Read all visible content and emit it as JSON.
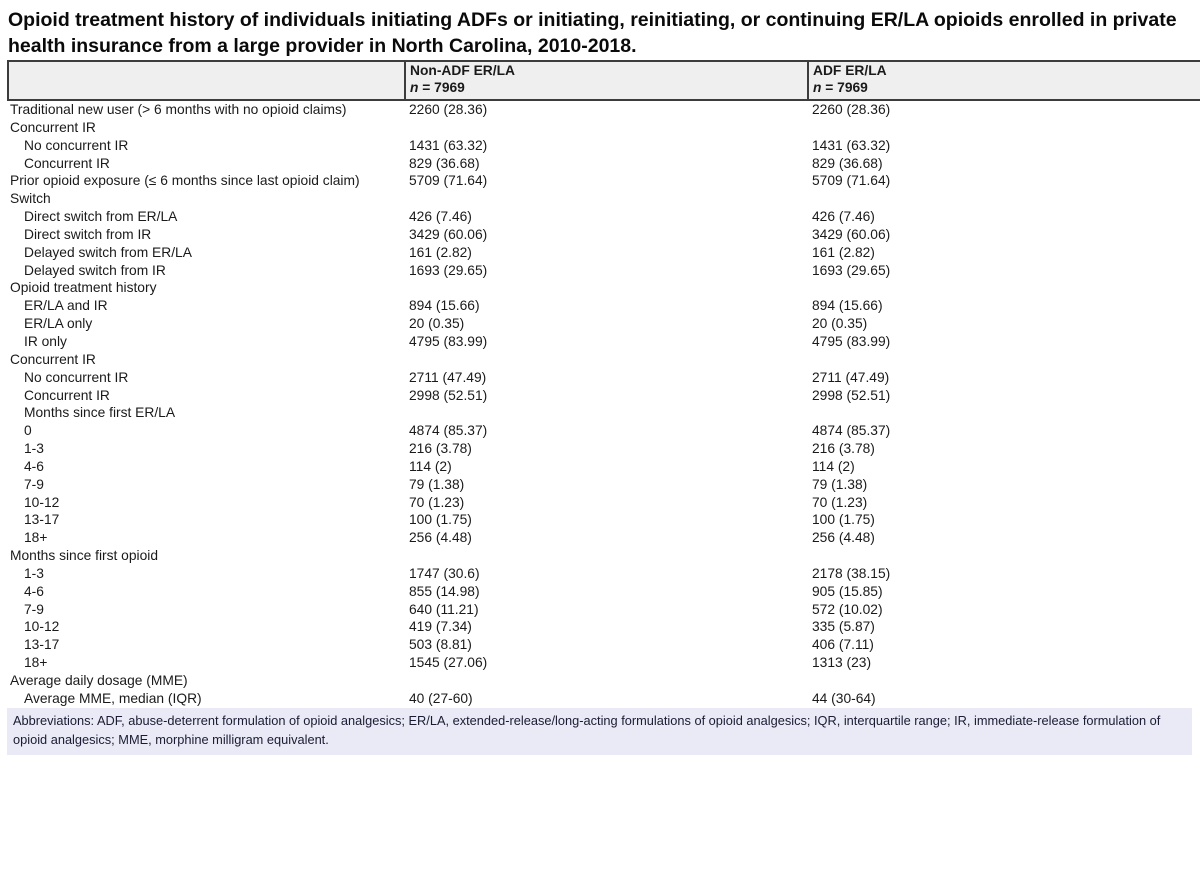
{
  "page": {
    "title": "Opioid treatment history of individuals initiating ADFs or initiating, reinitiating, or continuing ER/LA opioids enrolled in private health insurance from a large provider in North Carolina, 2010-2018."
  },
  "colors": {
    "header_bg": "#efeff0",
    "table_border": "#3c3c3c",
    "footnote_bg": "#e9eaf6",
    "text": "#1a1a1a"
  },
  "table": {
    "header": {
      "col1": "",
      "col2": {
        "label": "Non-ADF ER/LA",
        "n_symbol": "n",
        "n_value": " = 7969"
      },
      "col3": {
        "label": "ADF ER/LA",
        "n_symbol": "n",
        "n_value": " = 7969"
      }
    },
    "rows": [
      {
        "label": "Traditional new user (> 6 months with no opioid claims)",
        "indent": 0,
        "non_adf": "2260 (28.36)",
        "adf": "2260 (28.36)"
      },
      {
        "label": "Concurrent IR",
        "indent": 0,
        "non_adf": "",
        "adf": ""
      },
      {
        "label": "No concurrent IR",
        "indent": 1,
        "non_adf": "1431 (63.32)",
        "adf": "1431 (63.32)"
      },
      {
        "label": "Concurrent IR",
        "indent": 1,
        "non_adf": "829 (36.68)",
        "adf": "829 (36.68)"
      },
      {
        "label": "Prior opioid exposure (≤ 6 months since last opioid claim)",
        "indent": 0,
        "non_adf": "5709 (71.64)",
        "adf": "5709 (71.64)"
      },
      {
        "label": "Switch",
        "indent": 0,
        "non_adf": "",
        "adf": ""
      },
      {
        "label": "Direct switch from ER/LA",
        "indent": 1,
        "non_adf": "426 (7.46)",
        "adf": "426 (7.46)"
      },
      {
        "label": "Direct switch from IR",
        "indent": 1,
        "non_adf": "3429 (60.06)",
        "adf": "3429 (60.06)"
      },
      {
        "label": "Delayed switch from ER/LA",
        "indent": 1,
        "non_adf": "161 (2.82)",
        "adf": "161 (2.82)"
      },
      {
        "label": "Delayed switch from IR",
        "indent": 1,
        "non_adf": "1693 (29.65)",
        "adf": "1693 (29.65)"
      },
      {
        "label": "Opioid treatment history",
        "indent": 0,
        "non_adf": "",
        "adf": ""
      },
      {
        "label": "ER/LA and IR",
        "indent": 1,
        "non_adf": "894 (15.66)",
        "adf": "894 (15.66)"
      },
      {
        "label": "ER/LA only",
        "indent": 1,
        "non_adf": "20 (0.35)",
        "adf": "20 (0.35)"
      },
      {
        "label": "IR only",
        "indent": 1,
        "non_adf": "4795 (83.99)",
        "adf": "4795 (83.99)"
      },
      {
        "label": "Concurrent IR",
        "indent": 0,
        "non_adf": "",
        "adf": ""
      },
      {
        "label": "No concurrent IR",
        "indent": 1,
        "non_adf": "2711 (47.49)",
        "adf": "2711 (47.49)"
      },
      {
        "label": "Concurrent IR",
        "indent": 1,
        "non_adf": "2998 (52.51)",
        "adf": "2998 (52.51)"
      },
      {
        "label": "Months since first ER/LA",
        "indent": 1,
        "non_adf": "",
        "adf": ""
      },
      {
        "label": "0",
        "indent": 1,
        "non_adf": "4874 (85.37)",
        "adf": "4874 (85.37)"
      },
      {
        "label": "1-3",
        "indent": 1,
        "non_adf": "216 (3.78)",
        "adf": "216 (3.78)"
      },
      {
        "label": "4-6",
        "indent": 1,
        "non_adf": "114 (2)",
        "adf": "114 (2)"
      },
      {
        "label": "7-9",
        "indent": 1,
        "non_adf": "79 (1.38)",
        "adf": "79 (1.38)"
      },
      {
        "label": "10-12",
        "indent": 1,
        "non_adf": "70 (1.23)",
        "adf": "70 (1.23)"
      },
      {
        "label": "13-17",
        "indent": 1,
        "non_adf": "100 (1.75)",
        "adf": "100 (1.75)"
      },
      {
        "label": "18+",
        "indent": 1,
        "non_adf": "256 (4.48)",
        "adf": "256 (4.48)"
      },
      {
        "label": "Months since first opioid",
        "indent": 0,
        "non_adf": "",
        "adf": ""
      },
      {
        "label": "1-3",
        "indent": 1,
        "non_adf": "1747 (30.6)",
        "adf": "2178 (38.15)"
      },
      {
        "label": "4-6",
        "indent": 1,
        "non_adf": "855 (14.98)",
        "adf": "905 (15.85)"
      },
      {
        "label": "7-9",
        "indent": 1,
        "non_adf": "640 (11.21)",
        "adf": "572 (10.02)"
      },
      {
        "label": "10-12",
        "indent": 1,
        "non_adf": "419 (7.34)",
        "adf": "335 (5.87)"
      },
      {
        "label": "13-17",
        "indent": 1,
        "non_adf": "503 (8.81)",
        "adf": "406 (7.11)"
      },
      {
        "label": "18+",
        "indent": 1,
        "non_adf": "1545 (27.06)",
        "adf": "1313 (23)"
      },
      {
        "label": "Average daily dosage (MME)",
        "indent": 0,
        "non_adf": "",
        "adf": ""
      },
      {
        "label": "Average MME, median (IQR)",
        "indent": 1,
        "non_adf": "40 (27-60)",
        "adf": "44 (30-64)"
      }
    ],
    "footnote": "Abbreviations: ADF, abuse-deterrent formulation of opioid analgesics; ER/LA, extended-release/long-acting formulations of opioid analgesics; IQR, interquartile range; IR, immediate-release formulation of opioid analgesics; MME, morphine milligram equivalent."
  }
}
